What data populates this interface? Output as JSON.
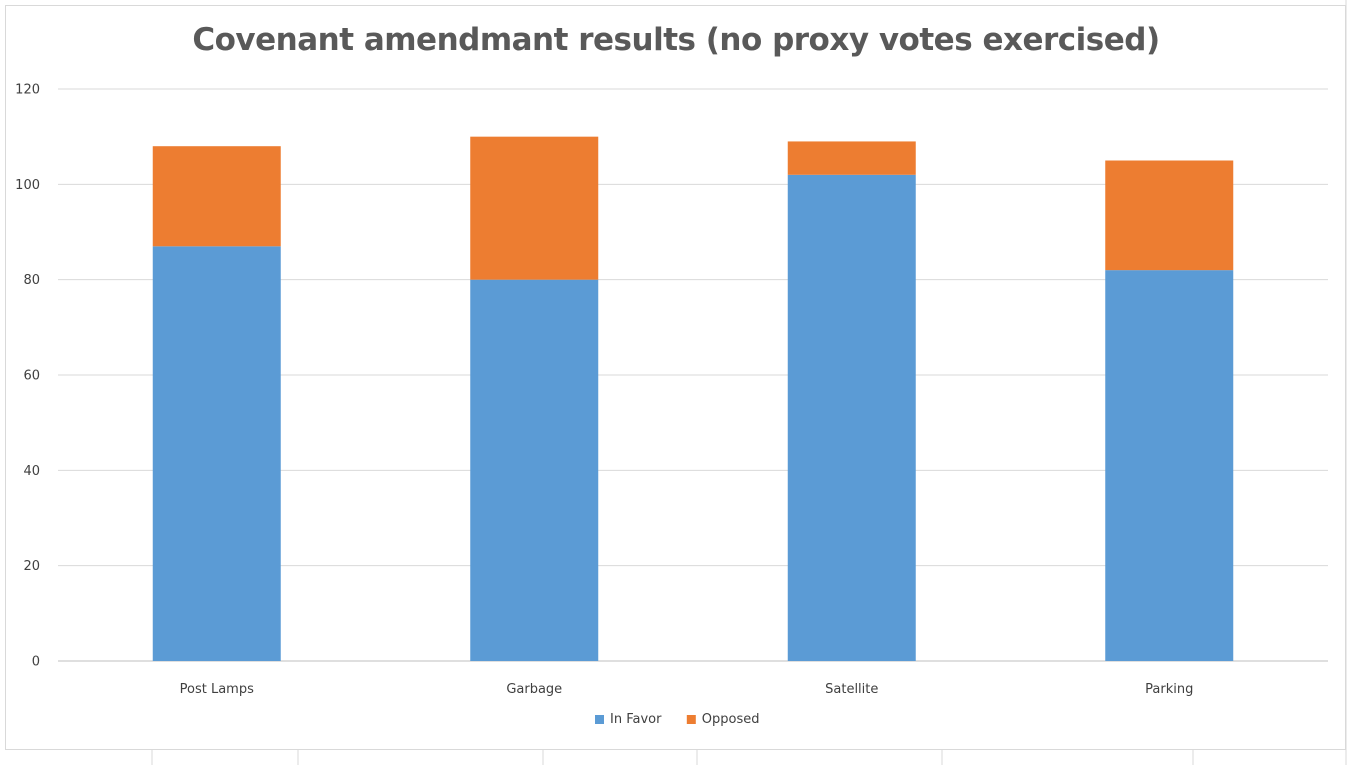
{
  "chart_data": {
    "type": "bar",
    "stacked": true,
    "title": "Covenant amendmant results (no proxy votes exercised)",
    "xlabel": "",
    "ylabel": "",
    "categories": [
      "Post Lamps",
      "Garbage",
      "Satellite",
      "Parking"
    ],
    "series": [
      {
        "name": "In Favor",
        "values": [
          87,
          80,
          102,
          82
        ],
        "color": "#5b9bd5"
      },
      {
        "name": "Opposed",
        "values": [
          21,
          30,
          7,
          23
        ],
        "color": "#ed7d31"
      }
    ],
    "ylim": [
      0,
      120
    ],
    "yticks": [
      "0",
      "20",
      "40",
      "60",
      "80",
      "100",
      "120"
    ],
    "grid": true,
    "legend": "bottom"
  }
}
